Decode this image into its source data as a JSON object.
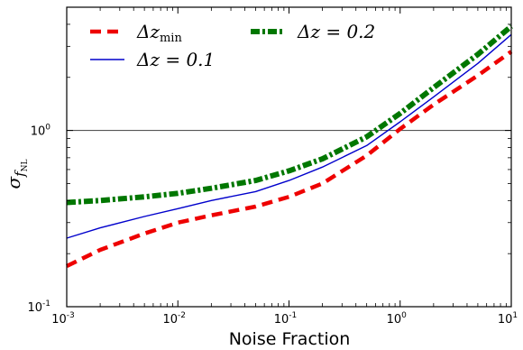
{
  "chart_data": {
    "type": "line",
    "xlabel": "Noise Fraction",
    "ylabel": {
      "main": "σ",
      "sub": "f",
      "subsub": "NL"
    },
    "xscale": "log",
    "yscale": "log",
    "xlim": [
      0.001,
      10
    ],
    "ylim": [
      0.1,
      5
    ],
    "x_ticks": [
      {
        "value": 0.001,
        "base": "10",
        "exp": "-3"
      },
      {
        "value": 0.01,
        "base": "10",
        "exp": "-2"
      },
      {
        "value": 0.1,
        "base": "10",
        "exp": "-1"
      },
      {
        "value": 1,
        "base": "10",
        "exp": "0"
      },
      {
        "value": 10,
        "base": "10",
        "exp": "1"
      }
    ],
    "y_ticks": [
      {
        "value": 0.1,
        "base": "10",
        "exp": "-1"
      },
      {
        "value": 1,
        "base": "10",
        "exp": "0"
      }
    ],
    "reference_line": {
      "y": 1,
      "color": "#555555"
    },
    "legend_position": "top",
    "series": [
      {
        "name": "Δz_min",
        "legend_main": "Δz",
        "legend_sub": "min",
        "color": "#ee0000",
        "style": "dashed",
        "x": [
          0.001,
          0.002,
          0.005,
          0.01,
          0.02,
          0.05,
          0.1,
          0.2,
          0.5,
          1,
          2,
          5,
          10
        ],
        "y": [
          0.17,
          0.21,
          0.26,
          0.3,
          0.33,
          0.37,
          0.42,
          0.5,
          0.72,
          1.02,
          1.4,
          2.05,
          2.8
        ]
      },
      {
        "name": "Δz = 0.1",
        "legend_main": "Δz = 0.1",
        "legend_sub": "",
        "color": "#0000cc",
        "style": "solid",
        "x": [
          0.001,
          0.002,
          0.005,
          0.01,
          0.02,
          0.05,
          0.1,
          0.2,
          0.5,
          1,
          2,
          5,
          10
        ],
        "y": [
          0.245,
          0.28,
          0.325,
          0.36,
          0.4,
          0.45,
          0.52,
          0.62,
          0.82,
          1.12,
          1.55,
          2.4,
          3.5
        ]
      },
      {
        "name": "Δz = 0.2",
        "legend_main": "Δz = 0.2",
        "legend_sub": "",
        "color": "#007700",
        "style": "dashdot",
        "x": [
          0.001,
          0.002,
          0.005,
          0.01,
          0.02,
          0.05,
          0.1,
          0.2,
          0.5,
          1,
          2,
          5,
          10
        ],
        "y": [
          0.39,
          0.4,
          0.42,
          0.44,
          0.47,
          0.52,
          0.59,
          0.69,
          0.92,
          1.25,
          1.75,
          2.7,
          3.9
        ]
      }
    ]
  }
}
